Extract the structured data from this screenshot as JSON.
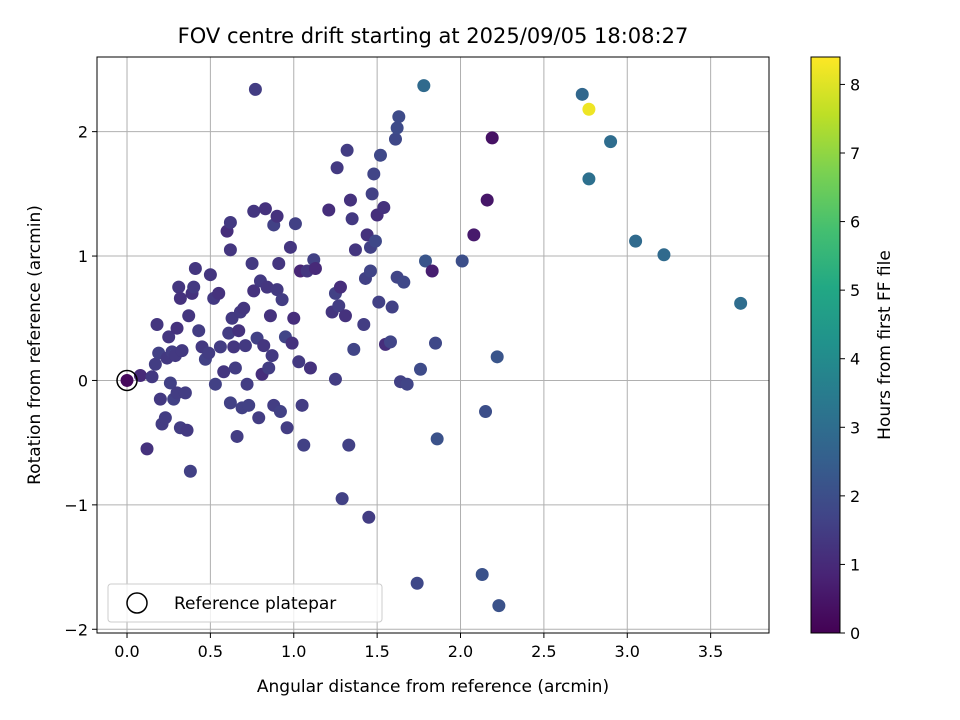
{
  "chart_data": {
    "type": "scatter",
    "title": "FOV centre drift starting at 2025/09/05 18:08:27",
    "xlabel": "Angular distance from reference (arcmin)",
    "ylabel": "Rotation from reference (arcmin)",
    "xlim": [
      -0.18,
      3.85
    ],
    "ylim": [
      -2.03,
      2.6
    ],
    "xticks": [
      "0.0",
      "0.5",
      "1.0",
      "1.5",
      "2.0",
      "2.5",
      "3.0",
      "3.5"
    ],
    "xtick_values": [
      0,
      0.5,
      1.0,
      1.5,
      2.0,
      2.5,
      3.0,
      3.5
    ],
    "yticks": [
      "−2",
      "−1",
      "0",
      "1",
      "2"
    ],
    "ytick_values": [
      -2,
      -1,
      0,
      1,
      2
    ],
    "grid": true,
    "legend": {
      "placement": "lower-left",
      "entries": [
        "Reference platepar"
      ]
    },
    "reference_point": {
      "x": 0.0,
      "y": 0.0
    },
    "colorbar": {
      "label": "Hours from first FF file",
      "colormap": "viridis",
      "range": [
        0,
        8.4
      ],
      "ticks": [
        "0",
        "1",
        "2",
        "3",
        "4",
        "5",
        "6",
        "7",
        "8"
      ],
      "tick_values": [
        0,
        1,
        2,
        3,
        4,
        5,
        6,
        7,
        8
      ]
    },
    "points": [
      {
        "x": 0.0,
        "y": 0.0,
        "c": 0.2
      },
      {
        "x": 0.08,
        "y": 0.04,
        "c": 1.0
      },
      {
        "x": 0.12,
        "y": -0.55,
        "c": 1.2
      },
      {
        "x": 0.15,
        "y": 0.03,
        "c": 1.4
      },
      {
        "x": 0.17,
        "y": 0.13,
        "c": 1.5
      },
      {
        "x": 0.18,
        "y": 0.45,
        "c": 1.3
      },
      {
        "x": 0.19,
        "y": 0.22,
        "c": 1.6
      },
      {
        "x": 0.2,
        "y": -0.15,
        "c": 1.4
      },
      {
        "x": 0.21,
        "y": -0.35,
        "c": 1.5
      },
      {
        "x": 0.23,
        "y": -0.3,
        "c": 1.5
      },
      {
        "x": 0.24,
        "y": 0.18,
        "c": 1.4
      },
      {
        "x": 0.25,
        "y": 0.35,
        "c": 1.3
      },
      {
        "x": 0.26,
        "y": -0.02,
        "c": 1.6
      },
      {
        "x": 0.27,
        "y": 0.23,
        "c": 1.5
      },
      {
        "x": 0.28,
        "y": -0.15,
        "c": 1.6
      },
      {
        "x": 0.29,
        "y": 0.2,
        "c": 1.4
      },
      {
        "x": 0.3,
        "y": 0.42,
        "c": 1.2
      },
      {
        "x": 0.3,
        "y": -0.1,
        "c": 1.5
      },
      {
        "x": 0.31,
        "y": 0.75,
        "c": 1.3
      },
      {
        "x": 0.32,
        "y": 0.66,
        "c": 1.2
      },
      {
        "x": 0.32,
        "y": -0.38,
        "c": 1.5
      },
      {
        "x": 0.33,
        "y": 0.24,
        "c": 1.4
      },
      {
        "x": 0.35,
        "y": -0.1,
        "c": 1.5
      },
      {
        "x": 0.36,
        "y": -0.4,
        "c": 1.4
      },
      {
        "x": 0.37,
        "y": 0.52,
        "c": 1.3
      },
      {
        "x": 0.38,
        "y": -0.73,
        "c": 1.6
      },
      {
        "x": 0.39,
        "y": 0.7,
        "c": 1.2
      },
      {
        "x": 0.4,
        "y": 0.75,
        "c": 1.4
      },
      {
        "x": 0.41,
        "y": 0.9,
        "c": 1.3
      },
      {
        "x": 0.43,
        "y": 0.4,
        "c": 1.5
      },
      {
        "x": 0.45,
        "y": 0.27,
        "c": 1.4
      },
      {
        "x": 0.47,
        "y": 0.17,
        "c": 1.6
      },
      {
        "x": 0.49,
        "y": 0.22,
        "c": 1.5
      },
      {
        "x": 0.5,
        "y": 0.85,
        "c": 1.3
      },
      {
        "x": 0.52,
        "y": 0.66,
        "c": 1.4
      },
      {
        "x": 0.53,
        "y": -0.03,
        "c": 1.6
      },
      {
        "x": 0.55,
        "y": 0.7,
        "c": 1.2
      },
      {
        "x": 0.56,
        "y": 0.27,
        "c": 1.5
      },
      {
        "x": 0.58,
        "y": 0.07,
        "c": 1.3
      },
      {
        "x": 0.6,
        "y": 1.2,
        "c": 1.1
      },
      {
        "x": 0.61,
        "y": 0.38,
        "c": 1.5
      },
      {
        "x": 0.62,
        "y": 1.27,
        "c": 1.4
      },
      {
        "x": 0.62,
        "y": 1.05,
        "c": 1.3
      },
      {
        "x": 0.62,
        "y": -0.18,
        "c": 1.6
      },
      {
        "x": 0.63,
        "y": 0.5,
        "c": 1.4
      },
      {
        "x": 0.64,
        "y": 0.27,
        "c": 1.3
      },
      {
        "x": 0.65,
        "y": 0.1,
        "c": 1.5
      },
      {
        "x": 0.66,
        "y": -0.45,
        "c": 1.5
      },
      {
        "x": 0.67,
        "y": 0.4,
        "c": 1.2
      },
      {
        "x": 0.68,
        "y": 0.55,
        "c": 1.4
      },
      {
        "x": 0.69,
        "y": -0.22,
        "c": 1.6
      },
      {
        "x": 0.7,
        "y": 0.58,
        "c": 1.3
      },
      {
        "x": 0.71,
        "y": 0.28,
        "c": 1.4
      },
      {
        "x": 0.72,
        "y": -0.03,
        "c": 1.5
      },
      {
        "x": 0.73,
        "y": -0.2,
        "c": 1.6
      },
      {
        "x": 0.75,
        "y": 0.94,
        "c": 1.4
      },
      {
        "x": 0.76,
        "y": 1.36,
        "c": 1.3
      },
      {
        "x": 0.76,
        "y": 0.72,
        "c": 1.2
      },
      {
        "x": 0.77,
        "y": 2.34,
        "c": 1.5
      },
      {
        "x": 0.78,
        "y": 0.34,
        "c": 1.6
      },
      {
        "x": 0.79,
        "y": -0.3,
        "c": 1.5
      },
      {
        "x": 0.8,
        "y": 0.8,
        "c": 1.4
      },
      {
        "x": 0.81,
        "y": 0.05,
        "c": 1.1
      },
      {
        "x": 0.82,
        "y": 0.28,
        "c": 1.3
      },
      {
        "x": 0.83,
        "y": 1.38,
        "c": 1.2
      },
      {
        "x": 0.84,
        "y": 0.75,
        "c": 1.3
      },
      {
        "x": 0.85,
        "y": 0.1,
        "c": 1.5
      },
      {
        "x": 0.86,
        "y": 0.52,
        "c": 1.2
      },
      {
        "x": 0.87,
        "y": 0.2,
        "c": 1.4
      },
      {
        "x": 0.88,
        "y": 1.25,
        "c": 1.6
      },
      {
        "x": 0.88,
        "y": -0.2,
        "c": 1.5
      },
      {
        "x": 0.9,
        "y": 1.32,
        "c": 1.2
      },
      {
        "x": 0.9,
        "y": 0.73,
        "c": 1.4
      },
      {
        "x": 0.91,
        "y": 0.94,
        "c": 1.3
      },
      {
        "x": 0.92,
        "y": -0.25,
        "c": 1.6
      },
      {
        "x": 0.93,
        "y": 0.65,
        "c": 1.5
      },
      {
        "x": 0.95,
        "y": 0.35,
        "c": 1.7
      },
      {
        "x": 0.96,
        "y": -0.38,
        "c": 1.5
      },
      {
        "x": 0.98,
        "y": 1.07,
        "c": 1.3
      },
      {
        "x": 0.99,
        "y": 0.3,
        "c": 1.2
      },
      {
        "x": 1.0,
        "y": 0.5,
        "c": 1.1
      },
      {
        "x": 1.01,
        "y": 1.26,
        "c": 1.6
      },
      {
        "x": 1.03,
        "y": 0.15,
        "c": 1.4
      },
      {
        "x": 1.04,
        "y": 0.88,
        "c": 0.9
      },
      {
        "x": 1.05,
        "y": -0.2,
        "c": 1.5
      },
      {
        "x": 1.06,
        "y": -0.52,
        "c": 1.6
      },
      {
        "x": 1.08,
        "y": 0.88,
        "c": 1.3
      },
      {
        "x": 1.1,
        "y": 0.1,
        "c": 1.2
      },
      {
        "x": 1.12,
        "y": 0.97,
        "c": 1.6
      },
      {
        "x": 1.13,
        "y": 0.9,
        "c": 1.0
      },
      {
        "x": 1.21,
        "y": 1.37,
        "c": 1.1
      },
      {
        "x": 1.23,
        "y": 0.55,
        "c": 1.3
      },
      {
        "x": 1.25,
        "y": 0.01,
        "c": 1.5
      },
      {
        "x": 1.25,
        "y": 0.7,
        "c": 1.6
      },
      {
        "x": 1.26,
        "y": 1.71,
        "c": 1.4
      },
      {
        "x": 1.27,
        "y": 0.6,
        "c": 1.5
      },
      {
        "x": 1.28,
        "y": 0.75,
        "c": 1.1
      },
      {
        "x": 1.29,
        "y": -0.95,
        "c": 1.6
      },
      {
        "x": 1.31,
        "y": 0.52,
        "c": 1.2
      },
      {
        "x": 1.32,
        "y": 1.85,
        "c": 1.5
      },
      {
        "x": 1.33,
        "y": -0.52,
        "c": 1.6
      },
      {
        "x": 1.34,
        "y": 1.45,
        "c": 1.2
      },
      {
        "x": 1.35,
        "y": 1.3,
        "c": 1.4
      },
      {
        "x": 1.36,
        "y": 0.25,
        "c": 1.7
      },
      {
        "x": 1.37,
        "y": 1.05,
        "c": 1.3
      },
      {
        "x": 1.42,
        "y": 0.45,
        "c": 1.5
      },
      {
        "x": 1.43,
        "y": 0.82,
        "c": 1.6
      },
      {
        "x": 1.44,
        "y": 1.17,
        "c": 1.2
      },
      {
        "x": 1.45,
        "y": -1.1,
        "c": 1.5
      },
      {
        "x": 1.46,
        "y": 1.07,
        "c": 1.6
      },
      {
        "x": 1.46,
        "y": 0.88,
        "c": 1.7
      },
      {
        "x": 1.47,
        "y": 1.5,
        "c": 1.6
      },
      {
        "x": 1.48,
        "y": 1.66,
        "c": 1.7
      },
      {
        "x": 1.49,
        "y": 1.12,
        "c": 1.8
      },
      {
        "x": 1.5,
        "y": 1.33,
        "c": 1.1
      },
      {
        "x": 1.51,
        "y": 0.63,
        "c": 1.6
      },
      {
        "x": 1.52,
        "y": 1.81,
        "c": 1.8
      },
      {
        "x": 1.54,
        "y": 1.39,
        "c": 1.2
      },
      {
        "x": 1.55,
        "y": 0.29,
        "c": 1.1
      },
      {
        "x": 1.58,
        "y": 0.31,
        "c": 1.7
      },
      {
        "x": 1.59,
        "y": 0.59,
        "c": 1.6
      },
      {
        "x": 1.61,
        "y": 1.94,
        "c": 1.8
      },
      {
        "x": 1.62,
        "y": 2.03,
        "c": 1.9
      },
      {
        "x": 1.62,
        "y": 0.83,
        "c": 1.7
      },
      {
        "x": 1.63,
        "y": 2.12,
        "c": 1.9
      },
      {
        "x": 1.64,
        "y": -0.01,
        "c": 1.6
      },
      {
        "x": 1.66,
        "y": 0.79,
        "c": 1.8
      },
      {
        "x": 1.68,
        "y": -0.03,
        "c": 1.7
      },
      {
        "x": 1.74,
        "y": -1.63,
        "c": 1.8
      },
      {
        "x": 1.76,
        "y": 0.09,
        "c": 1.9
      },
      {
        "x": 1.78,
        "y": 2.37,
        "c": 2.9
      },
      {
        "x": 1.79,
        "y": 0.96,
        "c": 2.2
      },
      {
        "x": 1.83,
        "y": 0.88,
        "c": 0.7
      },
      {
        "x": 1.85,
        "y": 0.3,
        "c": 1.8
      },
      {
        "x": 1.86,
        "y": -0.47,
        "c": 2.1
      },
      {
        "x": 2.01,
        "y": 0.96,
        "c": 2.0
      },
      {
        "x": 2.08,
        "y": 1.17,
        "c": 0.6
      },
      {
        "x": 2.13,
        "y": -1.56,
        "c": 2.1
      },
      {
        "x": 2.15,
        "y": -0.25,
        "c": 2.0
      },
      {
        "x": 2.16,
        "y": 1.45,
        "c": 0.5
      },
      {
        "x": 2.19,
        "y": 1.95,
        "c": 0.4
      },
      {
        "x": 2.22,
        "y": 0.19,
        "c": 2.2
      },
      {
        "x": 2.23,
        "y": -1.81,
        "c": 2.1
      },
      {
        "x": 2.73,
        "y": 2.3,
        "c": 2.8
      },
      {
        "x": 2.77,
        "y": 2.18,
        "c": 8.2
      },
      {
        "x": 2.77,
        "y": 1.62,
        "c": 3.1
      },
      {
        "x": 2.9,
        "y": 1.92,
        "c": 3.0
      },
      {
        "x": 3.05,
        "y": 1.12,
        "c": 2.9
      },
      {
        "x": 3.22,
        "y": 1.01,
        "c": 2.9
      },
      {
        "x": 3.68,
        "y": 0.62,
        "c": 3.0
      }
    ]
  }
}
